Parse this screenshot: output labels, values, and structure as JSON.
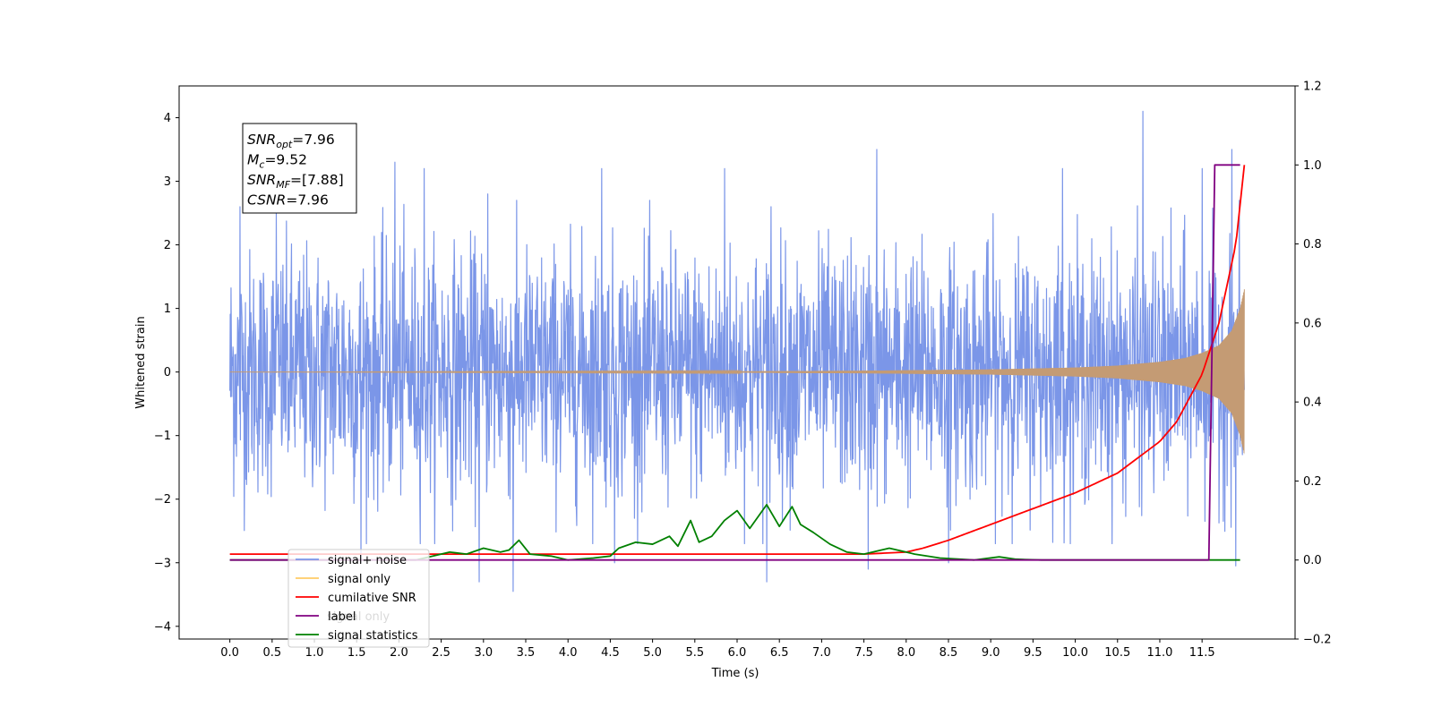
{
  "chart_data": {
    "type": "line",
    "xlabel": "Time (s)",
    "ylabel": "Whitened strain",
    "xlim": [
      -0.6,
      12.6
    ],
    "ylim": [
      -4.2,
      4.5
    ],
    "y2lim": [
      -0.2,
      1.2
    ],
    "x_ticks": [
      "0.0",
      "0.5",
      "1.0",
      "1.5",
      "2.0",
      "2.5",
      "3.0",
      "3.5",
      "4.0",
      "4.5",
      "5.0",
      "5.5",
      "6.0",
      "6.5",
      "7.0",
      "7.5",
      "8.0",
      "8.5",
      "9.0",
      "9.5",
      "10.0",
      "10.5",
      "11.0",
      "11.5"
    ],
    "y_ticks": [
      "−4",
      "−3",
      "−2",
      "−1",
      "0",
      "1",
      "2",
      "3",
      "4"
    ],
    "y2_ticks": [
      "−0.2",
      "0.0",
      "0.2",
      "0.4",
      "0.6",
      "0.8",
      "1.0",
      "1.2"
    ],
    "annotation": {
      "lines": [
        {
          "base": "SNR",
          "sub": "opt",
          "value": "=7.96"
        },
        {
          "base": "M",
          "sub": "c",
          "value": "=9.52"
        },
        {
          "base": "SNR",
          "sub": "MF",
          "value": "=[7.88]"
        },
        {
          "base": "CSNR",
          "sub": "",
          "value": "=7.96"
        }
      ]
    },
    "legend": {
      "placement": "lower-left",
      "ghost_text": "signal only"
    },
    "series": [
      {
        "name": "signal+ noise",
        "color": "#7b96e8",
        "axis": "left",
        "kind": "noise",
        "x_range": [
          0.0,
          12.0
        ],
        "typical_band": [
          -1.5,
          1.5
        ],
        "peaks": [
          [
            0.12,
            2.6
          ],
          [
            0.55,
            2.5
          ],
          [
            1.95,
            3.3
          ],
          [
            2.3,
            3.2
          ],
          [
            3.05,
            2.8
          ],
          [
            4.4,
            3.2
          ],
          [
            5.85,
            3.2
          ],
          [
            6.4,
            2.6
          ],
          [
            7.65,
            3.5
          ],
          [
            9.85,
            3.2
          ],
          [
            10.8,
            4.1
          ],
          [
            11.5,
            3.2
          ],
          [
            11.85,
            3.5
          ]
        ],
        "troughs": [
          [
            1.55,
            -3.0
          ],
          [
            2.95,
            -3.3
          ],
          [
            3.35,
            -3.45
          ],
          [
            4.55,
            -3.0
          ],
          [
            6.35,
            -3.3
          ],
          [
            7.55,
            -3.1
          ],
          [
            8.5,
            -3.0
          ],
          [
            11.9,
            -3.05
          ]
        ]
      },
      {
        "name": "signal only",
        "color": "#c49b74",
        "axis": "left",
        "kind": "chirp",
        "x": [
          0.0,
          6.0,
          7.5,
          9.0,
          10.0,
          10.5,
          11.0,
          11.3,
          11.5,
          11.7,
          11.85,
          11.95,
          12.0
        ],
        "amplitude": [
          0.0,
          0.01,
          0.02,
          0.04,
          0.07,
          0.1,
          0.16,
          0.22,
          0.3,
          0.42,
          0.65,
          1.0,
          1.3
        ]
      },
      {
        "name": "cumilative SNR",
        "color": "#ff0000",
        "axis": "right",
        "x": [
          0.0,
          7.0,
          7.5,
          8.0,
          8.2,
          8.5,
          9.0,
          9.5,
          10.0,
          10.5,
          11.0,
          11.2,
          11.5,
          11.7,
          11.9,
          12.0
        ],
        "values": [
          0.015,
          0.015,
          0.015,
          0.02,
          0.03,
          0.05,
          0.09,
          0.13,
          0.17,
          0.22,
          0.3,
          0.35,
          0.47,
          0.6,
          0.8,
          1.0
        ]
      },
      {
        "name": "label",
        "color": "#800080",
        "axis": "right",
        "x": [
          0.0,
          11.58,
          11.65,
          11.95
        ],
        "values": [
          0.0,
          0.0,
          1.0,
          1.0
        ]
      },
      {
        "name": "signal statistics",
        "color": "#008000",
        "axis": "right",
        "x": [
          0.0,
          2.2,
          2.6,
          2.8,
          3.0,
          3.2,
          3.3,
          3.42,
          3.55,
          3.8,
          4.0,
          4.3,
          4.5,
          4.6,
          4.8,
          5.0,
          5.2,
          5.3,
          5.45,
          5.55,
          5.7,
          5.85,
          6.0,
          6.15,
          6.35,
          6.5,
          6.65,
          6.75,
          6.9,
          7.1,
          7.3,
          7.5,
          7.8,
          8.1,
          8.4,
          8.8,
          9.1,
          9.3,
          9.6,
          10.0,
          11.0,
          11.95
        ],
        "values": [
          0.0,
          0.0,
          0.02,
          0.015,
          0.03,
          0.02,
          0.025,
          0.05,
          0.015,
          0.01,
          0.0,
          0.005,
          0.01,
          0.03,
          0.045,
          0.04,
          0.06,
          0.035,
          0.1,
          0.045,
          0.06,
          0.1,
          0.125,
          0.08,
          0.14,
          0.085,
          0.135,
          0.09,
          0.07,
          0.04,
          0.02,
          0.015,
          0.03,
          0.015,
          0.005,
          0.0,
          0.008,
          0.002,
          0.0,
          0.0,
          0.0,
          0.0
        ]
      }
    ]
  }
}
